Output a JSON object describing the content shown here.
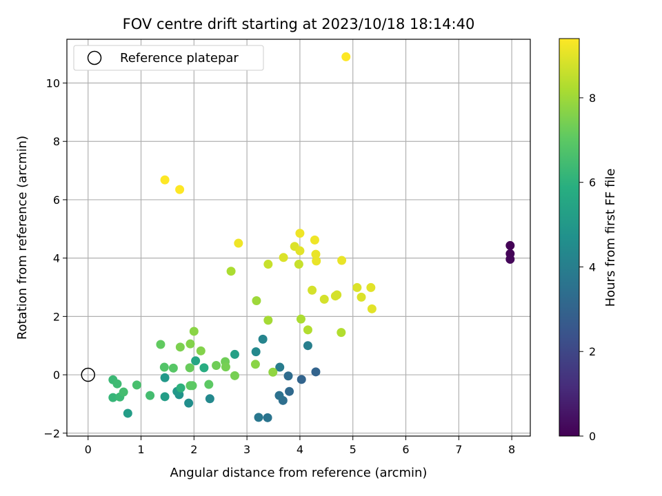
{
  "chart_data": {
    "type": "scatter",
    "title": "FOV centre drift starting at 2023/10/18 18:14:40",
    "xlabel": "Angular distance from reference (arcmin)",
    "ylabel": "Rotation from reference (arcmin)",
    "xlim": [
      -0.4,
      8.35
    ],
    "ylim": [
      -2.1,
      11.5
    ],
    "xticks": [
      0,
      1,
      2,
      3,
      4,
      5,
      6,
      7,
      8
    ],
    "yticks": [
      -2,
      0,
      2,
      4,
      6,
      8,
      10
    ],
    "grid": true,
    "legend": {
      "placement": "upper-left",
      "entries": [
        {
          "label": "Reference platepar",
          "marker": "open-circle"
        }
      ]
    },
    "reference_point": {
      "x": 0,
      "y": 0
    },
    "colorbar": {
      "label": "Hours from first FF file",
      "colormap": "viridis",
      "range": [
        0,
        9.4
      ],
      "ticks": [
        0,
        2,
        4,
        6,
        8
      ]
    },
    "points": [
      {
        "x": 7.97,
        "y": 4.43,
        "c": 0.05
      },
      {
        "x": 7.97,
        "y": 4.15,
        "c": 0.1
      },
      {
        "x": 7.97,
        "y": 3.96,
        "c": 0.15
      },
      {
        "x": 4.3,
        "y": 0.1,
        "c": 3.0
      },
      {
        "x": 4.03,
        "y": -0.16,
        "c": 3.0
      },
      {
        "x": 3.8,
        "y": -0.57,
        "c": 3.2
      },
      {
        "x": 3.78,
        "y": -0.04,
        "c": 3.3
      },
      {
        "x": 3.68,
        "y": -0.88,
        "c": 3.4
      },
      {
        "x": 3.61,
        "y": -0.71,
        "c": 3.5
      },
      {
        "x": 3.39,
        "y": -1.47,
        "c": 3.6
      },
      {
        "x": 3.22,
        "y": -1.46,
        "c": 3.7
      },
      {
        "x": 3.62,
        "y": 0.26,
        "c": 3.9
      },
      {
        "x": 4.15,
        "y": 1.0,
        "c": 4.0
      },
      {
        "x": 3.3,
        "y": 1.22,
        "c": 4.2
      },
      {
        "x": 3.17,
        "y": 0.79,
        "c": 4.4
      },
      {
        "x": 2.3,
        "y": -0.82,
        "c": 4.4
      },
      {
        "x": 1.9,
        "y": -0.97,
        "c": 4.6
      },
      {
        "x": 1.72,
        "y": -0.68,
        "c": 4.8
      },
      {
        "x": 1.68,
        "y": -0.57,
        "c": 5.0
      },
      {
        "x": 1.45,
        "y": -0.1,
        "c": 5.0
      },
      {
        "x": 1.45,
        "y": -0.75,
        "c": 5.2
      },
      {
        "x": 0.75,
        "y": -1.32,
        "c": 5.2
      },
      {
        "x": 2.77,
        "y": 0.7,
        "c": 5.3
      },
      {
        "x": 2.03,
        "y": 0.48,
        "c": 5.5
      },
      {
        "x": 2.19,
        "y": 0.24,
        "c": 5.8
      },
      {
        "x": 1.75,
        "y": -0.45,
        "c": 6.0
      },
      {
        "x": 0.47,
        "y": -0.78,
        "c": 6.2
      },
      {
        "x": 0.6,
        "y": -0.76,
        "c": 6.3
      },
      {
        "x": 0.47,
        "y": -0.17,
        "c": 6.3
      },
      {
        "x": 0.55,
        "y": -0.31,
        "c": 6.4
      },
      {
        "x": 0.67,
        "y": -0.59,
        "c": 6.5
      },
      {
        "x": 1.17,
        "y": -0.71,
        "c": 6.5
      },
      {
        "x": 0.92,
        "y": -0.35,
        "c": 6.6
      },
      {
        "x": 1.44,
        "y": 0.26,
        "c": 6.8
      },
      {
        "x": 1.61,
        "y": 0.23,
        "c": 6.9
      },
      {
        "x": 1.97,
        "y": -0.37,
        "c": 7.0
      },
      {
        "x": 1.93,
        "y": -0.37,
        "c": 7.0
      },
      {
        "x": 2.28,
        "y": -0.33,
        "c": 7.0
      },
      {
        "x": 1.37,
        "y": 1.04,
        "c": 7.1
      },
      {
        "x": 1.92,
        "y": 0.24,
        "c": 7.2
      },
      {
        "x": 2.42,
        "y": 0.32,
        "c": 7.3
      },
      {
        "x": 2.59,
        "y": 0.45,
        "c": 7.3
      },
      {
        "x": 2.6,
        "y": 0.27,
        "c": 7.4
      },
      {
        "x": 2.77,
        "y": -0.03,
        "c": 7.4
      },
      {
        "x": 1.74,
        "y": 0.95,
        "c": 7.5
      },
      {
        "x": 1.93,
        "y": 1.06,
        "c": 7.6
      },
      {
        "x": 2.13,
        "y": 0.82,
        "c": 7.6
      },
      {
        "x": 2.0,
        "y": 1.49,
        "c": 7.7
      },
      {
        "x": 3.16,
        "y": 0.36,
        "c": 7.7
      },
      {
        "x": 3.49,
        "y": 0.09,
        "c": 7.8
      },
      {
        "x": 3.18,
        "y": 2.54,
        "c": 8.0
      },
      {
        "x": 3.4,
        "y": 1.87,
        "c": 8.1
      },
      {
        "x": 2.7,
        "y": 3.55,
        "c": 8.2
      },
      {
        "x": 4.02,
        "y": 1.91,
        "c": 8.2
      },
      {
        "x": 4.15,
        "y": 1.54,
        "c": 8.3
      },
      {
        "x": 4.78,
        "y": 1.45,
        "c": 8.3
      },
      {
        "x": 3.4,
        "y": 3.79,
        "c": 8.6
      },
      {
        "x": 3.98,
        "y": 3.79,
        "c": 8.6
      },
      {
        "x": 4.23,
        "y": 2.9,
        "c": 8.8
      },
      {
        "x": 4.46,
        "y": 2.59,
        "c": 8.8
      },
      {
        "x": 4.67,
        "y": 2.7,
        "c": 8.8
      },
      {
        "x": 4.7,
        "y": 2.74,
        "c": 8.8
      },
      {
        "x": 5.16,
        "y": 2.66,
        "c": 8.9
      },
      {
        "x": 5.08,
        "y": 2.99,
        "c": 8.9
      },
      {
        "x": 5.34,
        "y": 2.99,
        "c": 9.0
      },
      {
        "x": 5.36,
        "y": 2.26,
        "c": 9.0
      },
      {
        "x": 3.69,
        "y": 4.02,
        "c": 8.9
      },
      {
        "x": 3.9,
        "y": 4.4,
        "c": 8.9
      },
      {
        "x": 4.0,
        "y": 4.25,
        "c": 9.0
      },
      {
        "x": 4.3,
        "y": 4.13,
        "c": 9.1
      },
      {
        "x": 4.31,
        "y": 3.9,
        "c": 9.1
      },
      {
        "x": 4.79,
        "y": 3.92,
        "c": 9.1
      },
      {
        "x": 2.84,
        "y": 4.51,
        "c": 9.2
      },
      {
        "x": 4.28,
        "y": 4.62,
        "c": 9.2
      },
      {
        "x": 4.0,
        "y": 4.85,
        "c": 9.2
      },
      {
        "x": 1.45,
        "y": 6.68,
        "c": 9.4
      },
      {
        "x": 1.73,
        "y": 6.35,
        "c": 9.4
      },
      {
        "x": 4.87,
        "y": 10.9,
        "c": 9.4
      }
    ]
  }
}
